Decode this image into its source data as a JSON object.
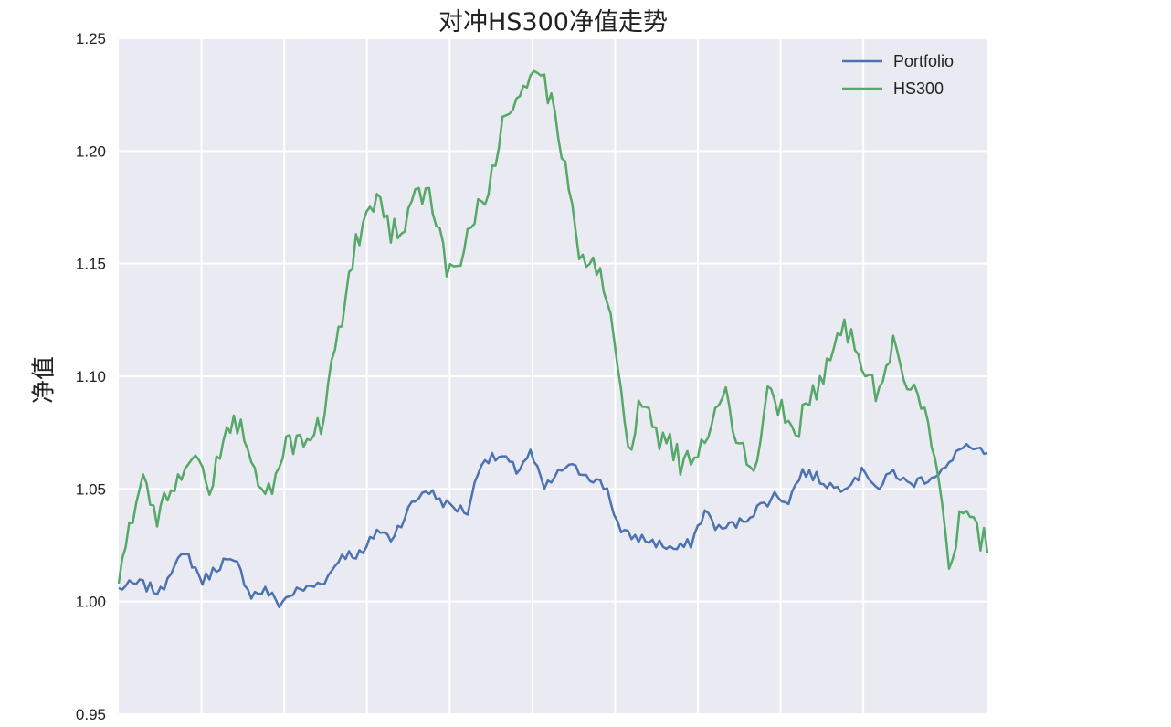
{
  "chart_data": {
    "type": "line",
    "title": "对冲HS300净值走势",
    "xlabel": "",
    "ylabel": "净值",
    "ylim": [
      0.95,
      1.25
    ],
    "yticks": [
      "0.95",
      "1.00",
      "1.05",
      "1.10",
      "1.15",
      "1.20",
      "1.25"
    ],
    "grid": true,
    "legend_position": "top-right",
    "x_points": 250,
    "series": [
      {
        "name": "Portfolio",
        "color": "#4c72b0",
        "knots": [
          [
            0,
            1.006
          ],
          [
            6,
            1.008
          ],
          [
            12,
            1.004
          ],
          [
            16,
            1.018
          ],
          [
            20,
            1.02
          ],
          [
            24,
            1.009
          ],
          [
            30,
            1.018
          ],
          [
            34,
            1.016
          ],
          [
            38,
            1.003
          ],
          [
            42,
            1.005
          ],
          [
            46,
            0.999
          ],
          [
            50,
            1.004
          ],
          [
            56,
            1.007
          ],
          [
            60,
            1.011
          ],
          [
            64,
            1.021
          ],
          [
            70,
            1.021
          ],
          [
            74,
            1.032
          ],
          [
            78,
            1.028
          ],
          [
            84,
            1.043
          ],
          [
            88,
            1.05
          ],
          [
            94,
            1.043
          ],
          [
            100,
            1.04
          ],
          [
            104,
            1.063
          ],
          [
            110,
            1.064
          ],
          [
            114,
            1.058
          ],
          [
            118,
            1.066
          ],
          [
            122,
            1.05
          ],
          [
            128,
            1.06
          ],
          [
            134,
            1.057
          ],
          [
            140,
            1.05
          ],
          [
            144,
            1.03
          ],
          [
            150,
            1.028
          ],
          [
            156,
            1.025
          ],
          [
            160,
            1.023
          ],
          [
            164,
            1.026
          ],
          [
            168,
            1.04
          ],
          [
            172,
            1.032
          ],
          [
            178,
            1.035
          ],
          [
            182,
            1.04
          ],
          [
            188,
            1.047
          ],
          [
            192,
            1.045
          ],
          [
            196,
            1.058
          ],
          [
            200,
            1.055
          ],
          [
            206,
            1.05
          ],
          [
            210,
            1.054
          ],
          [
            214,
            1.058
          ],
          [
            218,
            1.05
          ],
          [
            222,
            1.058
          ],
          [
            226,
            1.052
          ],
          [
            232,
            1.055
          ],
          [
            238,
            1.06
          ],
          [
            242,
            1.07
          ],
          [
            248,
            1.065
          ]
        ],
        "values": []
      },
      {
        "name": "HS300",
        "color": "#55a868",
        "knots": [
          [
            0,
            1.008
          ],
          [
            6,
            1.055
          ],
          [
            10,
            1.038
          ],
          [
            14,
            1.045
          ],
          [
            18,
            1.06
          ],
          [
            22,
            1.065
          ],
          [
            26,
            1.05
          ],
          [
            30,
            1.072
          ],
          [
            34,
            1.08
          ],
          [
            38,
            1.06
          ],
          [
            42,
            1.045
          ],
          [
            48,
            1.068
          ],
          [
            54,
            1.075
          ],
          [
            58,
            1.075
          ],
          [
            62,
            1.11
          ],
          [
            66,
            1.145
          ],
          [
            70,
            1.17
          ],
          [
            74,
            1.18
          ],
          [
            78,
            1.165
          ],
          [
            82,
            1.17
          ],
          [
            86,
            1.185
          ],
          [
            90,
            1.175
          ],
          [
            94,
            1.15
          ],
          [
            98,
            1.15
          ],
          [
            102,
            1.17
          ],
          [
            106,
            1.18
          ],
          [
            110,
            1.21
          ],
          [
            114,
            1.225
          ],
          [
            118,
            1.235
          ],
          [
            122,
            1.232
          ],
          [
            126,
            1.21
          ],
          [
            130,
            1.17
          ],
          [
            134,
            1.145
          ],
          [
            138,
            1.15
          ],
          [
            142,
            1.12
          ],
          [
            146,
            1.065
          ],
          [
            150,
            1.09
          ],
          [
            154,
            1.075
          ],
          [
            158,
            1.07
          ],
          [
            162,
            1.06
          ],
          [
            166,
            1.07
          ],
          [
            170,
            1.08
          ],
          [
            174,
            1.09
          ],
          [
            178,
            1.07
          ],
          [
            182,
            1.06
          ],
          [
            186,
            1.09
          ],
          [
            190,
            1.085
          ],
          [
            194,
            1.07
          ],
          [
            198,
            1.092
          ],
          [
            202,
            1.098
          ],
          [
            206,
            1.125
          ],
          [
            210,
            1.12
          ],
          [
            214,
            1.1
          ],
          [
            218,
            1.09
          ],
          [
            222,
            1.12
          ],
          [
            226,
            1.09
          ],
          [
            230,
            1.09
          ],
          [
            234,
            1.06
          ],
          [
            238,
            1.015
          ],
          [
            242,
            1.045
          ],
          [
            246,
            1.03
          ],
          [
            250,
            1.025
          ]
        ],
        "values": []
      }
    ]
  }
}
